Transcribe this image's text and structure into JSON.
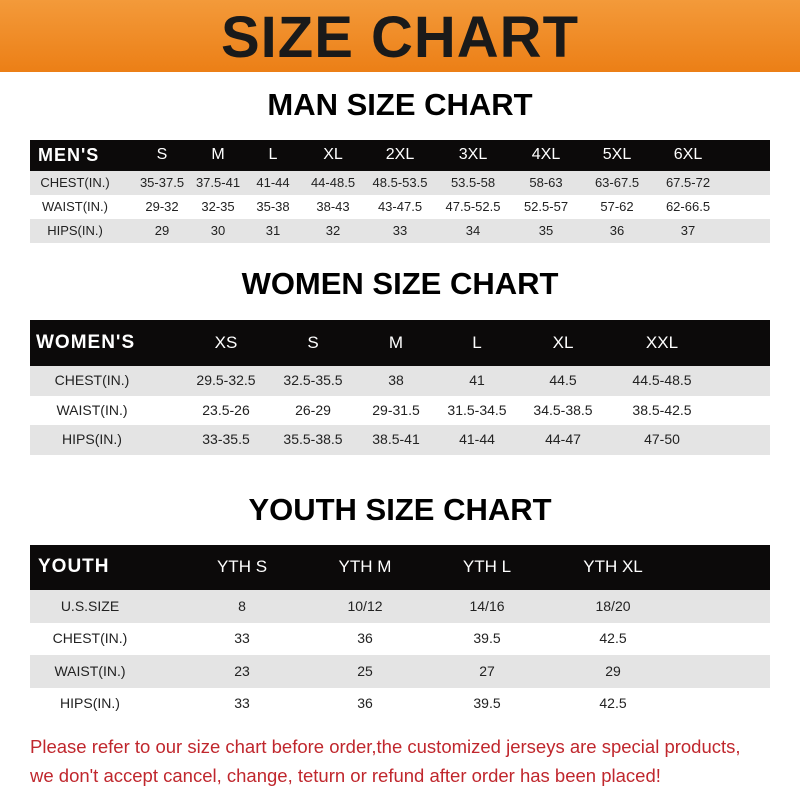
{
  "banner_title": "SIZE CHART",
  "accent_color": "#ec7f16",
  "note_color": "#c0272d",
  "tables": [
    {
      "title": "MAN SIZE CHART",
      "header": [
        "MEN'S",
        "S",
        "M",
        "L",
        "XL",
        "2XL",
        "3XL",
        "4XL",
        "5XL",
        "6XL"
      ],
      "rows": [
        [
          "CHEST(IN.)",
          "35-37.5",
          "37.5-41",
          "41-44",
          "44-48.5",
          "48.5-53.5",
          "53.5-58",
          "58-63",
          "63-67.5",
          "67.5-72"
        ],
        [
          "WAIST(IN.)",
          "29-32",
          "32-35",
          "35-38",
          "38-43",
          "43-47.5",
          "47.5-52.5",
          "52.5-57",
          "57-62",
          "62-66.5"
        ],
        [
          "HIPS(IN.)",
          "29",
          "30",
          "31",
          "32",
          "33",
          "34",
          "35",
          "36",
          "37"
        ]
      ]
    },
    {
      "title": "WOMEN SIZE CHART",
      "header": [
        "WOMEN'S",
        "XS",
        "S",
        "M",
        "L",
        "XL",
        "XXL"
      ],
      "rows": [
        [
          "CHEST(IN.)",
          "29.5-32.5",
          "32.5-35.5",
          "38",
          "41",
          "44.5",
          "44.5-48.5"
        ],
        [
          "WAIST(IN.)",
          "23.5-26",
          "26-29",
          "29-31.5",
          "31.5-34.5",
          "34.5-38.5",
          "38.5-42.5"
        ],
        [
          "HIPS(IN.)",
          "33-35.5",
          "35.5-38.5",
          "38.5-41",
          "41-44",
          "44-47",
          "47-50"
        ]
      ]
    },
    {
      "title": "YOUTH SIZE CHART",
      "header": [
        "YOUTH",
        "YTH S",
        "YTH M",
        "YTH L",
        "YTH XL"
      ],
      "rows": [
        [
          "U.S.SIZE",
          "8",
          "10/12",
          "14/16",
          "18/20"
        ],
        [
          "CHEST(IN.)",
          "33",
          "36",
          "39.5",
          "42.5"
        ],
        [
          "WAIST(IN.)",
          "23",
          "25",
          "27",
          "29"
        ],
        [
          "HIPS(IN.)",
          "33",
          "36",
          "39.5",
          "42.5"
        ]
      ]
    }
  ],
  "note": [
    "Please refer to our size chart before order,the customized jerseys are special products,",
    "we don't accept cancel, change, teturn or refund after order has been placed!"
  ]
}
